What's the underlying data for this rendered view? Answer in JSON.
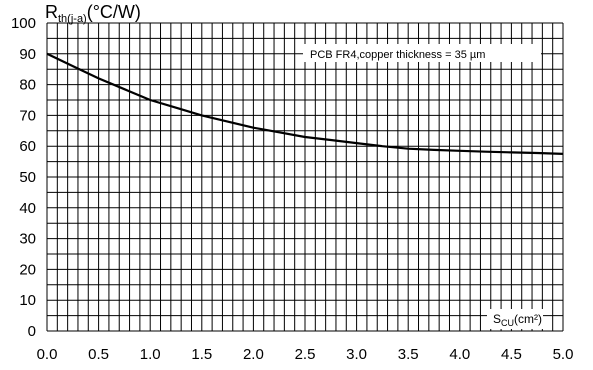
{
  "chart_data": {
    "type": "line",
    "ylabel": {
      "main": "R",
      "sub": "th(j-a)",
      "unit": "(°C/W)"
    },
    "xlabel": {
      "main": "S",
      "sub": "CU",
      "unit": "(cm²)"
    },
    "annotation": "PCB FR4,copper thickness = 35 µm",
    "xlim": [
      0,
      5
    ],
    "ylim": [
      0,
      100
    ],
    "x_ticks": [
      "0.0",
      "0.5",
      "1.0",
      "1.5",
      "2.0",
      "2.5",
      "3.0",
      "3.5",
      "4.0",
      "4.5",
      "5.0"
    ],
    "y_ticks": [
      "0",
      "10",
      "20",
      "30",
      "40",
      "50",
      "60",
      "70",
      "80",
      "90",
      "100"
    ],
    "grid": true,
    "series": [
      {
        "color": "#000000",
        "points": [
          [
            0.0,
            90
          ],
          [
            0.25,
            86
          ],
          [
            0.5,
            82
          ],
          [
            0.75,
            78.5
          ],
          [
            1.0,
            75
          ],
          [
            1.25,
            72.5
          ],
          [
            1.5,
            70
          ],
          [
            1.75,
            68
          ],
          [
            2.0,
            66
          ],
          [
            2.25,
            64.5
          ],
          [
            2.5,
            63
          ],
          [
            2.75,
            62
          ],
          [
            3.0,
            61
          ],
          [
            3.25,
            60
          ],
          [
            3.5,
            59.2
          ],
          [
            3.75,
            58.8
          ],
          [
            4.0,
            58.5
          ],
          [
            4.25,
            58.2
          ],
          [
            4.5,
            58
          ],
          [
            4.75,
            57.8
          ],
          [
            5.0,
            57.5
          ]
        ]
      }
    ]
  }
}
